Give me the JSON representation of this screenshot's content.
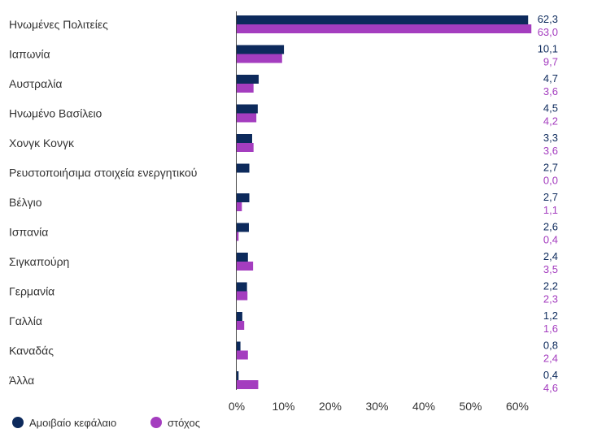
{
  "chart_data": {
    "type": "bar",
    "orientation": "horizontal",
    "categories": [
      "Ηνωμένες Πολιτείες",
      "Ιαπωνία",
      "Αυστραλία",
      "Ηνωμένο Βασίλειο",
      "Χονγκ Κονγκ",
      "Ρευστοποιήσιμα στοιχεία ενεργητικού",
      "Βέλγιο",
      "Ισπανία",
      "Σιγκαπούρη",
      "Γερμανία",
      "Γαλλία",
      "Καναδάς",
      "Άλλα"
    ],
    "series": [
      {
        "name": "Αμοιβαίο κεφάλαιο",
        "color": "#0d2a5c",
        "values": [
          62.3,
          10.1,
          4.7,
          4.5,
          3.3,
          2.7,
          2.7,
          2.6,
          2.4,
          2.2,
          1.2,
          0.8,
          0.4
        ],
        "labels": [
          "62,3",
          "10,1",
          "4,7",
          "4,5",
          "3,3",
          "2,7",
          "2,7",
          "2,6",
          "2,4",
          "2,2",
          "1,2",
          "0,8",
          "0,4"
        ]
      },
      {
        "name": "στόχος",
        "color": "#a43dbf",
        "values": [
          63.0,
          9.7,
          3.6,
          4.2,
          3.6,
          0.0,
          1.1,
          0.4,
          3.5,
          2.3,
          1.6,
          2.4,
          4.6
        ],
        "labels": [
          "63,0",
          "9,7",
          "3,6",
          "4,2",
          "3,6",
          "0,0",
          "1,1",
          "0,4",
          "3,5",
          "2,3",
          "1,6",
          "2,4",
          "4,6"
        ]
      }
    ],
    "x_ticks": [
      "0%",
      "10%",
      "20%",
      "30%",
      "40%",
      "50%",
      "60%"
    ],
    "xlim": [
      0,
      70
    ],
    "grid": false,
    "legend_position": "bottom-left"
  }
}
